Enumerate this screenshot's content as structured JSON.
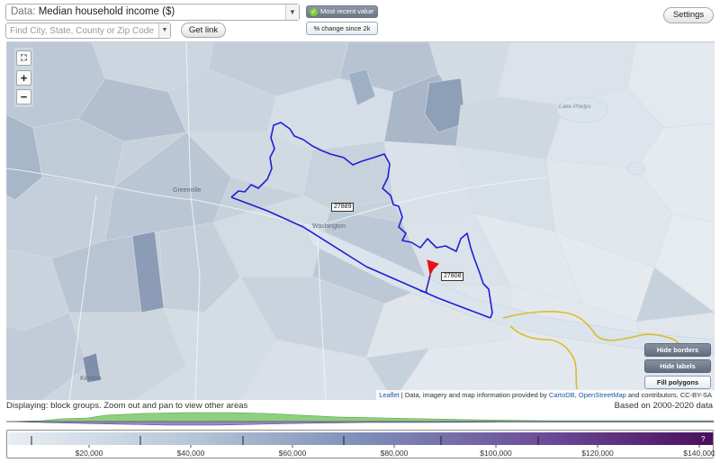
{
  "controls": {
    "data_prefix": "Data:",
    "data_value": "Median household income ($)",
    "search_placeholder": "Find City, State, County or Zip Code",
    "get_link": "Get link",
    "settings": "Settings",
    "mode_recent": "Most recent value",
    "mode_change": "% change since 2k"
  },
  "map": {
    "zoom_full_icon": "fullscreen-icon",
    "zoom_in": "+",
    "zoom_out": "−",
    "zip_labels": [
      "27889",
      "27808"
    ],
    "cities": [
      "Greenville",
      "Washington",
      "Kinston"
    ],
    "lake": "Lake Phelps",
    "hide_borders": "Hide borders",
    "hide_labels": "Hide labels",
    "fill_polygons": "Fill polygons",
    "attribution": {
      "leaflet": "Leaflet",
      "mid": " | Data, imagery and map information provided by ",
      "cartodb": "CartoDB",
      "sep": ", ",
      "osm": "OpenStreetMap",
      "tail": " and contributors, CC-BY-SA"
    },
    "colors": {
      "highlight_border": "#1f1fd6",
      "selected_area": "#e8101a",
      "county_border": "#d8bd2a",
      "ramp_light": "#e8eef3",
      "ramp_dark": "#4a0e5e"
    }
  },
  "legend": {
    "displaying": "Displaying: block groups. Zoom out and pan to view other areas",
    "based_on": "Based on 2000-2020 data",
    "ticks": [
      "$20,000",
      "$40,000",
      "$60,000",
      "$80,000",
      "$100,000",
      "$120,000",
      "$140,000"
    ],
    "unknown_marker": "?"
  }
}
